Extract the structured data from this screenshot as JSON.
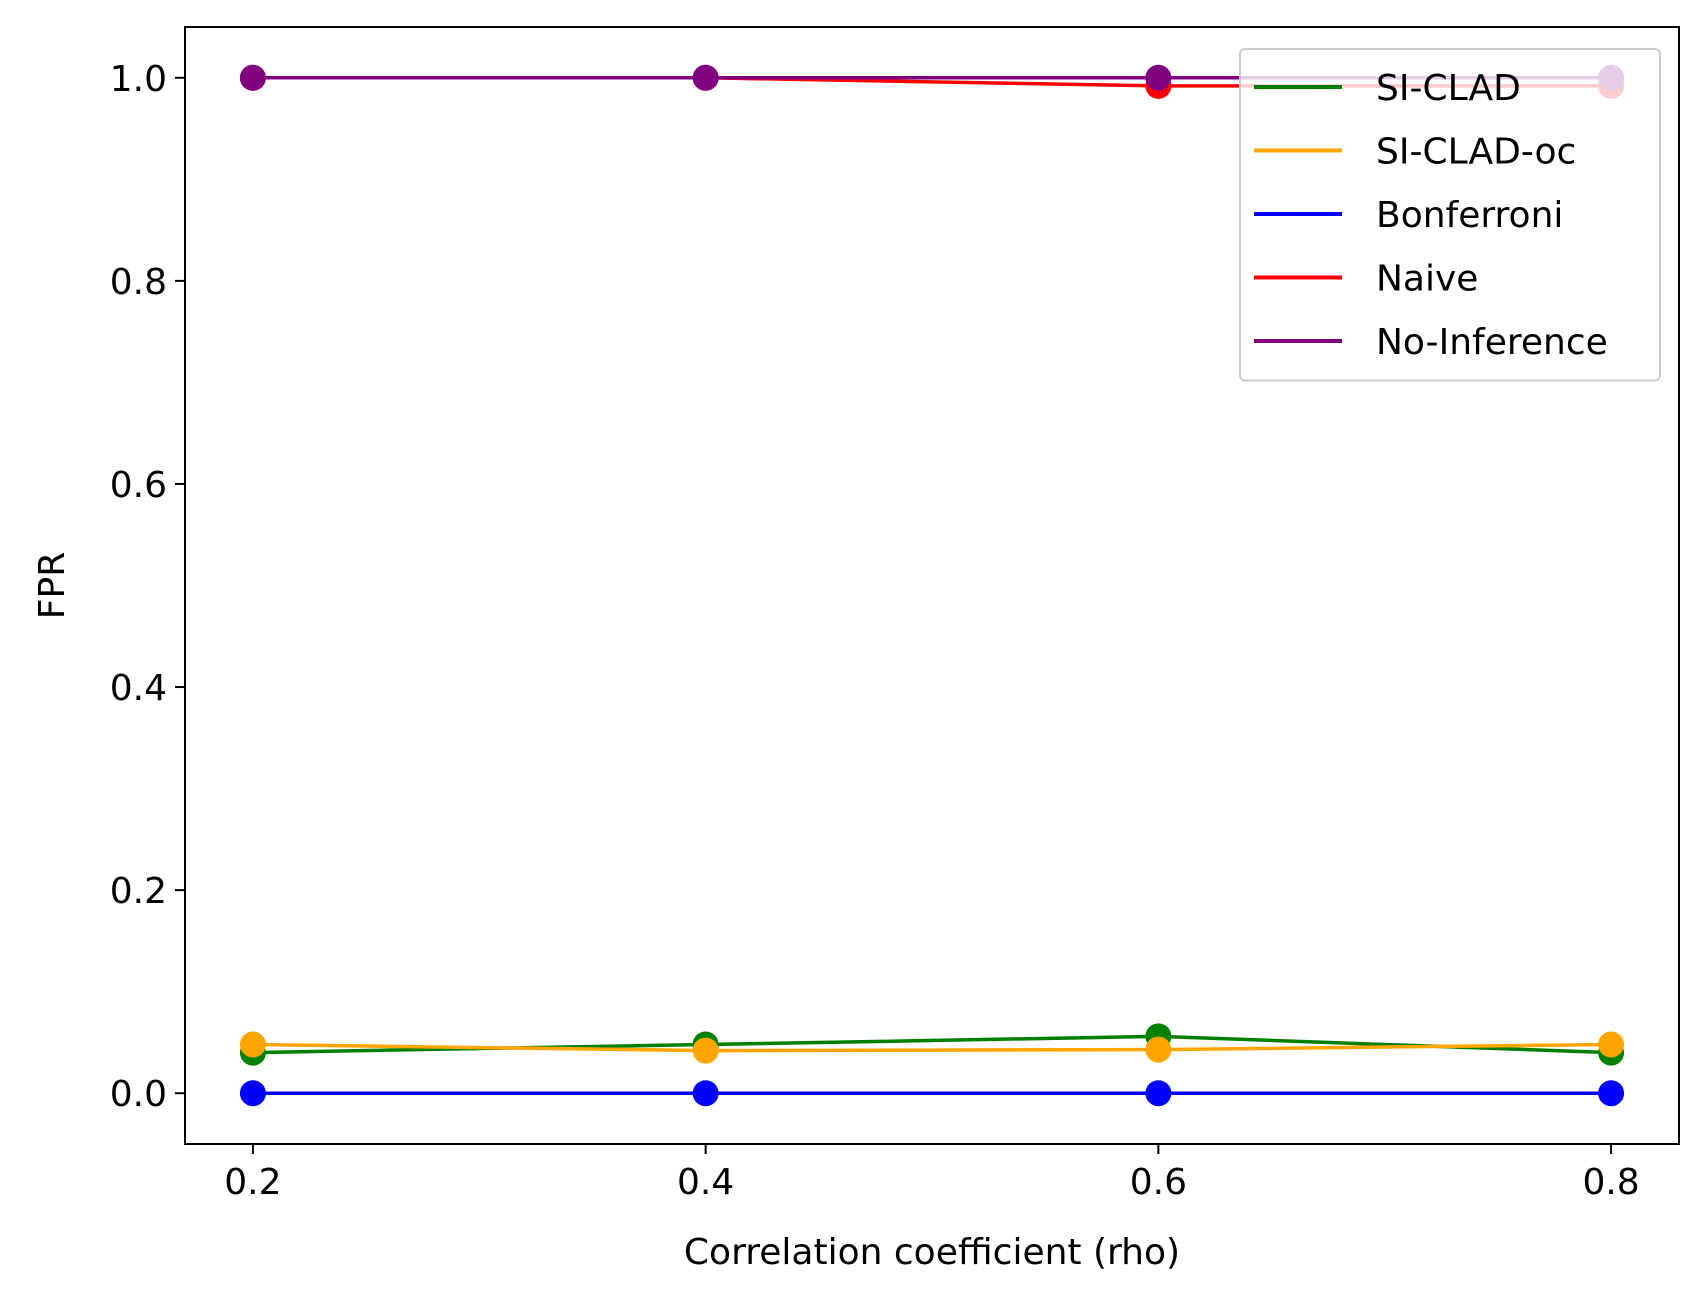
{
  "chart_data": {
    "type": "line",
    "title": "",
    "xlabel": "Correlation coefficient (rho)",
    "ylabel": "FPR",
    "x": [
      0.2,
      0.4,
      0.6,
      0.8
    ],
    "xlim": [
      0.17,
      0.83
    ],
    "ylim": [
      -0.05,
      1.05
    ],
    "xticks": [
      "0.2",
      "0.4",
      "0.6",
      "0.8"
    ],
    "yticks": [
      "0.0",
      "0.2",
      "0.4",
      "0.6",
      "0.8",
      "1.0"
    ],
    "grid": false,
    "legend_position": "top-right",
    "series": [
      {
        "name": "SI-CLAD",
        "color": "#008000",
        "values": [
          0.04,
          0.048,
          0.056,
          0.04
        ]
      },
      {
        "name": "SI-CLAD-oc",
        "color": "#ffa500",
        "values": [
          0.048,
          0.042,
          0.043,
          0.048
        ]
      },
      {
        "name": "Bonferroni",
        "color": "#0000ff",
        "values": [
          0.0,
          0.0,
          0.0,
          0.0
        ]
      },
      {
        "name": "Naive",
        "color": "#ff0000",
        "values": [
          1.0,
          1.0,
          0.992,
          0.992
        ]
      },
      {
        "name": "No-Inference",
        "color": "#800080",
        "values": [
          1.0,
          1.0,
          1.0,
          1.0
        ]
      }
    ]
  }
}
